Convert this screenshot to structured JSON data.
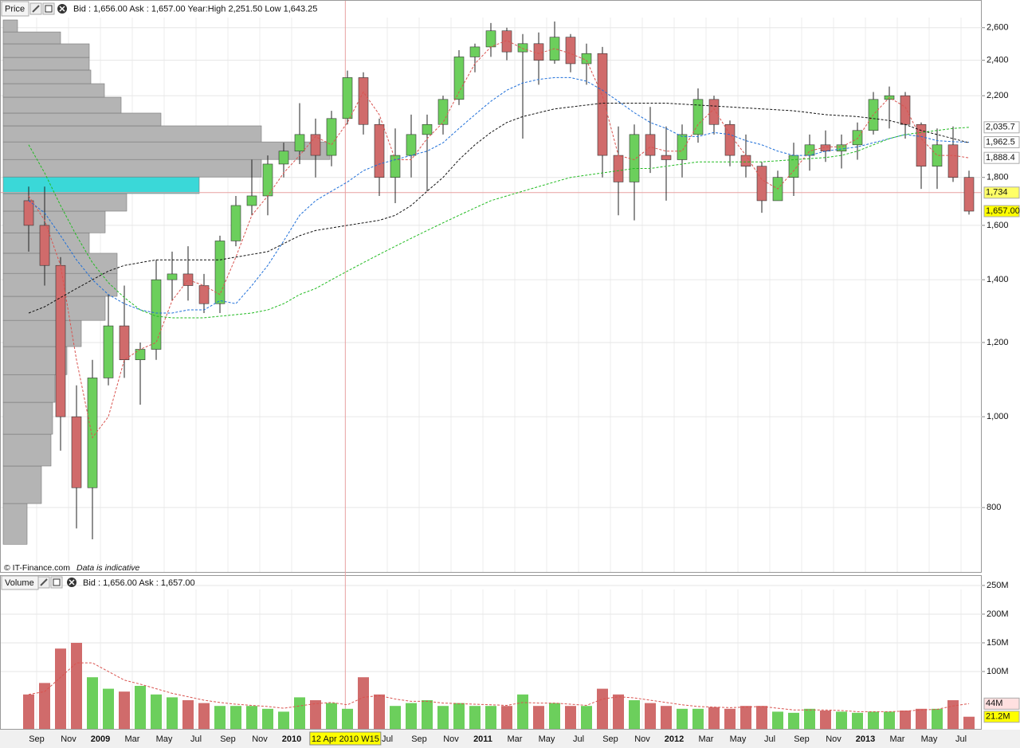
{
  "chart_data": [
    {
      "type": "candlestick",
      "label": "Price",
      "quote": "Bid : 1,656.00 Ask : 1,657.00 Year:High 2,251.50 Low 1,643.25",
      "footer": "© IT-Finance.com",
      "note": "Data is indicative",
      "log_scale": true,
      "grid": true,
      "ylim": [
        683,
        2783
      ],
      "yticks": [
        {
          "value": 800,
          "label": "800"
        },
        {
          "value": 1000,
          "label": "1,000"
        },
        {
          "value": 1200,
          "label": "1,200"
        },
        {
          "value": 1400,
          "label": "1,400"
        },
        {
          "value": 1600,
          "label": "1,600"
        },
        {
          "value": 1800,
          "label": "1,800"
        },
        {
          "value": 2200,
          "label": "2,200"
        },
        {
          "value": 2400,
          "label": "2,400"
        },
        {
          "value": 2600,
          "label": "2,600"
        }
      ],
      "up_color": "#6ccf5c",
      "down_color": "#d06b6b",
      "x": [
        "2008-08",
        "2008-09",
        "2008-10",
        "2008-11",
        "2008-12",
        "2009-01",
        "2009-02",
        "2009-03",
        "2009-04",
        "2009-05",
        "2009-06",
        "2009-07",
        "2009-08",
        "2009-09",
        "2009-10",
        "2009-11",
        "2009-12",
        "2010-01",
        "2010-02",
        "2010-03",
        "2010-04",
        "2010-05",
        "2010-06",
        "2010-07",
        "2010-08",
        "2010-09",
        "2010-10",
        "2010-11",
        "2010-12",
        "2011-01",
        "2011-02",
        "2011-03",
        "2011-04",
        "2011-05",
        "2011-06",
        "2011-07",
        "2011-08",
        "2011-09",
        "2011-10",
        "2011-11",
        "2011-12",
        "2012-01",
        "2012-02",
        "2012-03",
        "2012-04",
        "2012-05",
        "2012-06",
        "2012-07",
        "2012-08",
        "2012-09",
        "2012-10",
        "2012-11",
        "2012-12",
        "2013-01",
        "2013-02",
        "2013-03",
        "2013-04",
        "2013-05",
        "2013-06",
        "2013-07"
      ],
      "open": [
        1700,
        1600,
        1450,
        1000,
        840,
        1100,
        1250,
        1150,
        1180,
        1400,
        1420,
        1380,
        1320,
        1540,
        1680,
        1720,
        1860,
        1920,
        2000,
        1900,
        2080,
        2300,
        2050,
        1800,
        1900,
        2000,
        2050,
        2180,
        2420,
        2480,
        2580,
        2450,
        2500,
        2400,
        2540,
        2380,
        2440,
        1900,
        1780,
        2000,
        1900,
        1880,
        2000,
        2180,
        2050,
        1900,
        1850,
        1700,
        1800,
        1900,
        1950,
        1920,
        1950,
        2020,
        2180,
        2200,
        2050,
        1850,
        1950,
        1800
      ],
      "high": [
        1760,
        1760,
        1480,
        1080,
        1150,
        1350,
        1380,
        1200,
        1470,
        1500,
        1520,
        1420,
        1560,
        1720,
        1880,
        1900,
        1960,
        2160,
        2080,
        2120,
        2340,
        2330,
        2080,
        2030,
        2100,
        2100,
        2200,
        2460,
        2500,
        2630,
        2600,
        2560,
        2570,
        2640,
        2560,
        2500,
        2480,
        2040,
        2050,
        2140,
        2040,
        2050,
        2240,
        2200,
        2070,
        2000,
        1870,
        1830,
        1960,
        2000,
        2020,
        2000,
        2060,
        2220,
        2250,
        2220,
        2060,
        2030,
        2040,
        1830
      ],
      "low": [
        1500,
        1380,
        920,
        760,
        740,
        1080,
        1100,
        1030,
        1150,
        1330,
        1330,
        1290,
        1290,
        1520,
        1640,
        1640,
        1800,
        1860,
        1800,
        1850,
        2050,
        2000,
        1720,
        1690,
        1800,
        1740,
        2000,
        2150,
        2330,
        2420,
        2400,
        1980,
        2260,
        2380,
        2330,
        2260,
        1800,
        1640,
        1620,
        1820,
        1700,
        1800,
        1960,
        2000,
        1850,
        1800,
        1650,
        1700,
        1720,
        1830,
        1870,
        1840,
        1880,
        2000,
        2030,
        1980,
        1750,
        1750,
        1780,
        1643
      ],
      "close": [
        1600,
        1450,
        1000,
        840,
        1100,
        1250,
        1150,
        1180,
        1400,
        1420,
        1380,
        1320,
        1540,
        1680,
        1720,
        1860,
        1920,
        2000,
        1900,
        2080,
        2300,
        2050,
        1800,
        1900,
        2000,
        2050,
        2180,
        2420,
        2480,
        2580,
        2450,
        2500,
        2400,
        2540,
        2380,
        2440,
        1900,
        1780,
        2000,
        1900,
        1880,
        2000,
        2180,
        2050,
        1900,
        1850,
        1700,
        1800,
        1900,
        1950,
        1920,
        1950,
        2020,
        2180,
        2200,
        2050,
        1850,
        1950,
        1800,
        1657
      ],
      "moving_averages": [
        {
          "color": "#d9534f",
          "values": [
            1720,
            1620,
            1450,
            1150,
            950,
            1000,
            1150,
            1180,
            1200,
            1330,
            1400,
            1380,
            1350,
            1480,
            1640,
            1720,
            1820,
            1900,
            1990,
            1950,
            2060,
            2220,
            2100,
            1880,
            1880,
            1980,
            2060,
            2220,
            2380,
            2480,
            2520,
            2470,
            2440,
            2470,
            2440,
            2400,
            2200,
            1900,
            1880,
            1940,
            1920,
            1920,
            2050,
            2130,
            2000,
            1900,
            1790,
            1750,
            1830,
            1920,
            1940,
            1940,
            1980,
            2100,
            2190,
            2140,
            1980,
            1900,
            1900,
            1888.4
          ]
        },
        {
          "color": "#1e6fd9",
          "values": [
            1700,
            1650,
            1560,
            1470,
            1400,
            1350,
            1320,
            1300,
            1290,
            1290,
            1300,
            1300,
            1330,
            1320,
            1380,
            1450,
            1540,
            1640,
            1700,
            1740,
            1780,
            1830,
            1860,
            1880,
            1900,
            1920,
            1960,
            2030,
            2100,
            2170,
            2230,
            2270,
            2290,
            2300,
            2300,
            2280,
            2230,
            2170,
            2110,
            2060,
            2030,
            1990,
            1990,
            2010,
            2000,
            1970,
            1950,
            1920,
            1900,
            1900,
            1920,
            1930,
            1940,
            1960,
            1980,
            2000,
            1990,
            1970,
            1965,
            1962.5
          ]
        },
        {
          "color": "#111111",
          "values": [
            1290,
            1310,
            1340,
            1370,
            1400,
            1430,
            1450,
            1460,
            1470,
            1470,
            1470,
            1470,
            1470,
            1480,
            1490,
            1500,
            1530,
            1560,
            1580,
            1590,
            1600,
            1610,
            1620,
            1640,
            1680,
            1740,
            1800,
            1880,
            1950,
            2010,
            2060,
            2090,
            2110,
            2130,
            2140,
            2150,
            2160,
            2160,
            2160,
            2160,
            2160,
            2155,
            2150,
            2145,
            2140,
            2135,
            2130,
            2125,
            2120,
            2110,
            2100,
            2095,
            2090,
            2080,
            2070,
            2050,
            2020,
            2000,
            1980,
            1960
          ]
        },
        {
          "color": "#22bb22",
          "values": [
            1950,
            1820,
            1680,
            1560,
            1460,
            1390,
            1340,
            1300,
            1280,
            1275,
            1275,
            1275,
            1280,
            1285,
            1290,
            1300,
            1320,
            1350,
            1370,
            1400,
            1430,
            1460,
            1490,
            1520,
            1550,
            1580,
            1610,
            1640,
            1670,
            1700,
            1720,
            1740,
            1760,
            1780,
            1800,
            1810,
            1820,
            1830,
            1840,
            1840,
            1850,
            1860,
            1870,
            1870,
            1870,
            1870,
            1870,
            1875,
            1880,
            1885,
            1890,
            1900,
            1920,
            1950,
            1980,
            2000,
            2010,
            2020,
            2030,
            2035.7
          ]
        }
      ],
      "volume_profile": {
        "bins": [
          731,
          808,
          886,
          958,
          1036,
          1109,
          1188,
          1267,
          1344,
          1422,
          1494,
          1571,
          1657,
          1730,
          1802,
          1881,
          1964,
          2043,
          2108,
          2192,
          2266,
          2343,
          2417,
          2499,
          2573,
          2650
        ],
        "values": [
          30,
          48,
          60,
          62,
          65,
          80,
          98,
          128,
          143,
          143,
          108,
          128,
          155,
          246,
          324,
          410,
          324,
          198,
          148,
          127,
          110,
          108,
          108,
          72,
          18
        ],
        "color": "#b4b4b4",
        "highlight": 13,
        "highlight_color": "#3ad8d8"
      },
      "markers": [
        {
          "value": 2035.7,
          "label": "2,035.7",
          "color": "#22aa22",
          "background": "#ffffff"
        },
        {
          "value": 1962.5,
          "label": "1,962.5",
          "color": "#1e6fd9",
          "background": "#ffffff"
        },
        {
          "value": 1888.4,
          "label": "1,888.4",
          "color": "#d9534f",
          "background": "#ffffff"
        },
        {
          "value": 1734,
          "label": "1,734",
          "color": "#111111",
          "background": "#ffff66",
          "line_color": "#e8a0a0"
        },
        {
          "value": 1657,
          "label": "1,657.00",
          "color": "#111111",
          "background": "#ffff00"
        }
      ],
      "crosshair": {
        "x": "2010-04-12",
        "label": "12 Apr 2010 W15",
        "color": "#e8a0a0"
      }
    },
    {
      "type": "bar",
      "label": "Volume",
      "quote": "Bid : 1,656.00 Ask : 1,657.00",
      "ylim": [
        0,
        268
      ],
      "yticks": [
        {
          "value": 100,
          "label": "100M"
        },
        {
          "value": 150,
          "label": "150M"
        },
        {
          "value": 200,
          "label": "200M"
        },
        {
          "value": 250,
          "label": "250M"
        }
      ],
      "values": [
        60,
        80,
        140,
        150,
        90,
        70,
        65,
        75,
        60,
        55,
        50,
        45,
        40,
        40,
        40,
        35,
        30,
        55,
        50,
        45,
        35,
        90,
        60,
        40,
        45,
        50,
        40,
        45,
        40,
        40,
        40,
        60,
        40,
        45,
        40,
        40,
        70,
        60,
        50,
        45,
        40,
        35,
        35,
        38,
        35,
        40,
        40,
        30,
        28,
        35,
        32,
        30,
        28,
        30,
        30,
        32,
        35,
        35,
        50,
        21.2
      ],
      "ma": [
        60,
        65,
        90,
        115,
        115,
        100,
        85,
        78,
        70,
        62,
        56,
        50,
        46,
        43,
        41,
        39,
        36,
        40,
        44,
        46,
        42,
        55,
        58,
        52,
        48,
        48,
        45,
        44,
        43,
        42,
        41,
        46,
        45,
        45,
        43,
        41,
        52,
        56,
        54,
        50,
        46,
        42,
        39,
        38,
        37,
        38,
        39,
        36,
        33,
        33,
        33,
        32,
        30,
        30,
        30,
        31,
        33,
        34,
        40,
        44
      ],
      "ma_color": "#d9534f",
      "markers": [
        {
          "value": 44,
          "label": "44M",
          "color": "#d9534f",
          "background": "#ffe0e0"
        },
        {
          "value": 21.2,
          "label": "21.2M",
          "color": "#111111",
          "background": "#ffff00"
        }
      ],
      "xticks": [
        {
          "value": "2008-09",
          "label": "Sep"
        },
        {
          "value": "2008-11",
          "label": "Nov"
        },
        {
          "value": "2009-01",
          "label": "2009"
        },
        {
          "value": "2009-03",
          "label": "Mar"
        },
        {
          "value": "2009-05",
          "label": "May"
        },
        {
          "value": "2009-07",
          "label": "Jul"
        },
        {
          "value": "2009-09",
          "label": "Sep"
        },
        {
          "value": "2009-11",
          "label": "Nov"
        },
        {
          "value": "2010-01",
          "label": "2010"
        },
        {
          "value": "2010-07",
          "label": "Jul"
        },
        {
          "value": "2010-09",
          "label": "Sep"
        },
        {
          "value": "2010-11",
          "label": "Nov"
        },
        {
          "value": "2011-01",
          "label": "2011"
        },
        {
          "value": "2011-03",
          "label": "Mar"
        },
        {
          "value": "2011-05",
          "label": "May"
        },
        {
          "value": "2011-07",
          "label": "Jul"
        },
        {
          "value": "2011-09",
          "label": "Sep"
        },
        {
          "value": "2011-11",
          "label": "Nov"
        },
        {
          "value": "2012-01",
          "label": "2012"
        },
        {
          "value": "2012-03",
          "label": "Mar"
        },
        {
          "value": "2012-05",
          "label": "May"
        },
        {
          "value": "2012-07",
          "label": "Jul"
        },
        {
          "value": "2012-09",
          "label": "Sep"
        },
        {
          "value": "2012-11",
          "label": "Nov"
        },
        {
          "value": "2013-01",
          "label": "2013"
        },
        {
          "value": "2013-03",
          "label": "Mar"
        },
        {
          "value": "2013-05",
          "label": "May"
        },
        {
          "value": "2013-07",
          "label": "Jul"
        }
      ]
    }
  ]
}
